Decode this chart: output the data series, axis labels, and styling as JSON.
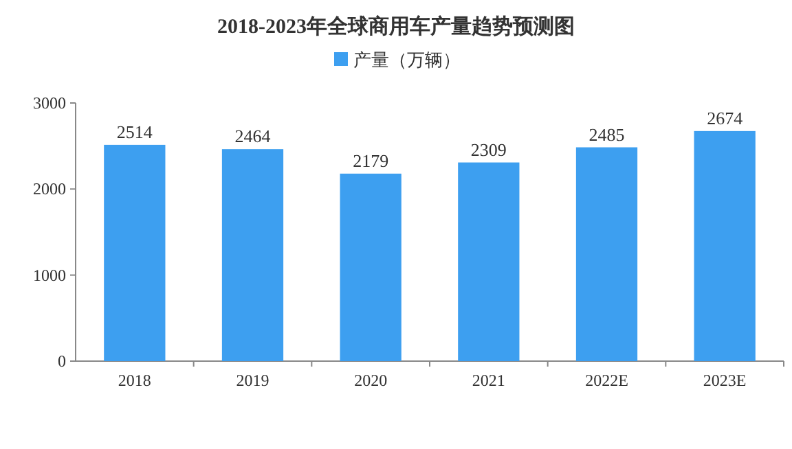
{
  "chart_data": {
    "type": "bar",
    "title": "2018-2023年全球商用车产量趋势预测图",
    "categories": [
      "2018",
      "2019",
      "2020",
      "2021",
      "2022E",
      "2023E"
    ],
    "series": [
      {
        "name": "产量（万辆）",
        "color": "#3d9ff0",
        "values": [
          2514,
          2464,
          2179,
          2309,
          2485,
          2674
        ]
      }
    ],
    "ylim": [
      0,
      3000
    ],
    "yticks": [
      0,
      1000,
      2000,
      3000
    ],
    "data_labels": true,
    "legend": "top",
    "grid": false
  }
}
